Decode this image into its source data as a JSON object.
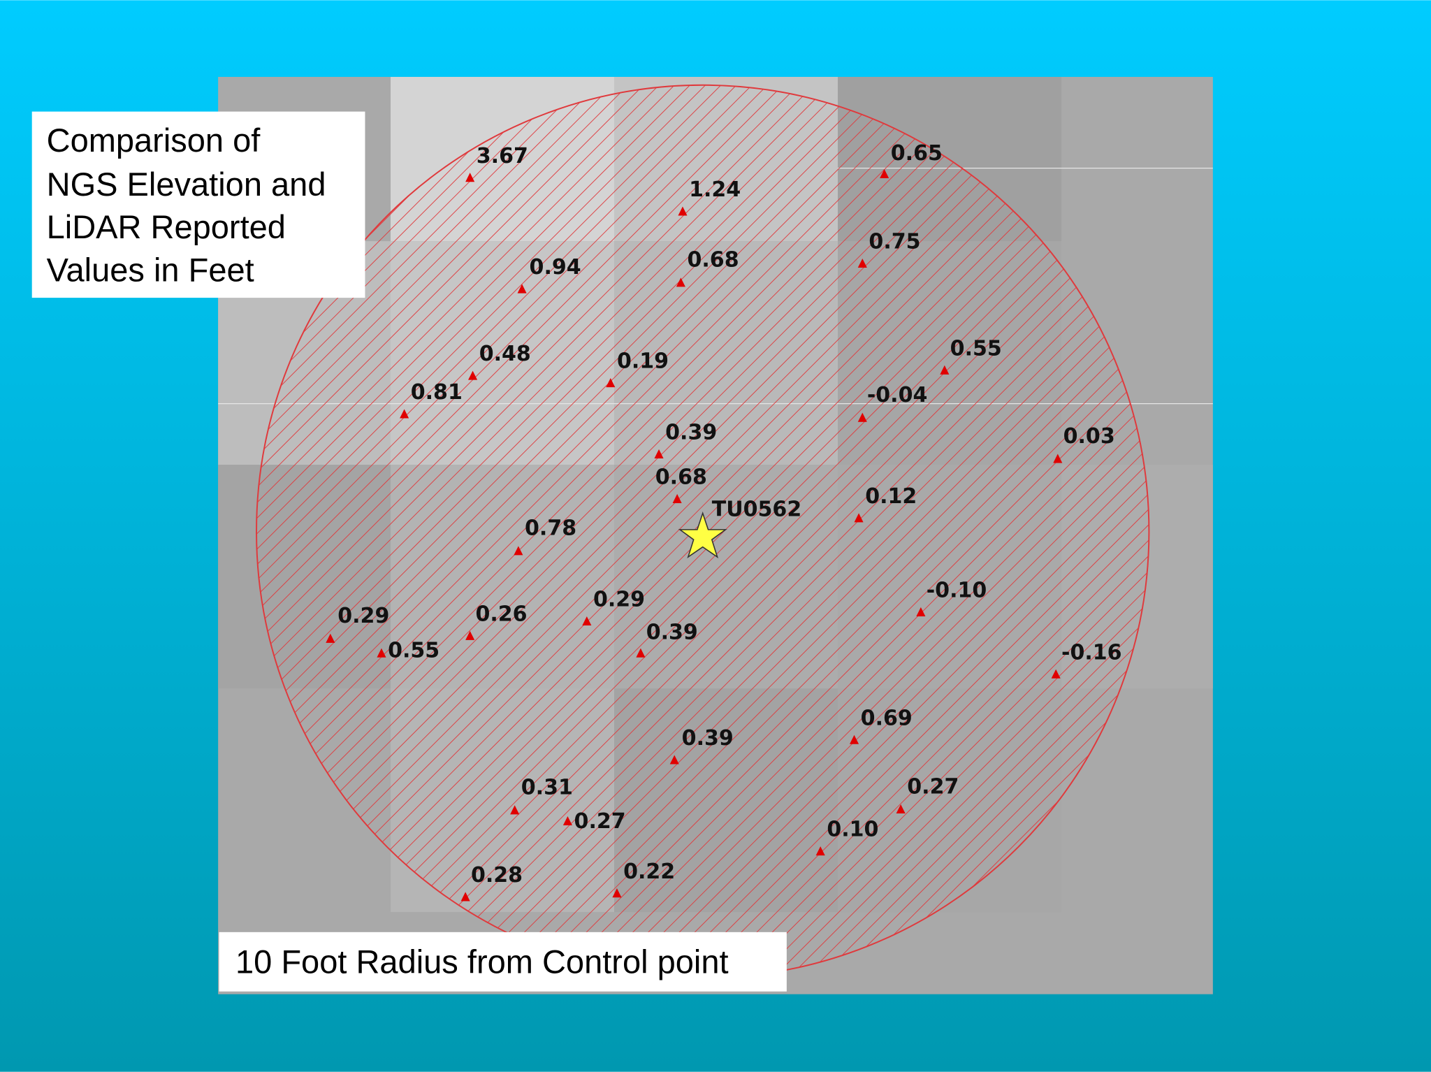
{
  "title_lines": [
    "Comparison of",
    "NGS Elevation and",
    "LiDAR Reported",
    "Values in Feet"
  ],
  "footer": "10 Foot Radius from Control point",
  "control_point": "TU0562",
  "points": [
    "3.67",
    "1.24",
    "0.65",
    "0.94",
    "0.68",
    "0.75",
    "0.48",
    "0.81",
    "0.19",
    "0.55",
    "-0.04",
    "0.03",
    "0.39",
    "0.68",
    "0.12",
    "0.78",
    "0.29",
    "0.55",
    "0.26",
    "0.29",
    "0.39",
    "-0.10",
    "-0.16",
    "0.69",
    "0.39",
    "0.31",
    "0.27",
    "0.27",
    "0.10",
    "0.28",
    "0.22"
  ]
}
